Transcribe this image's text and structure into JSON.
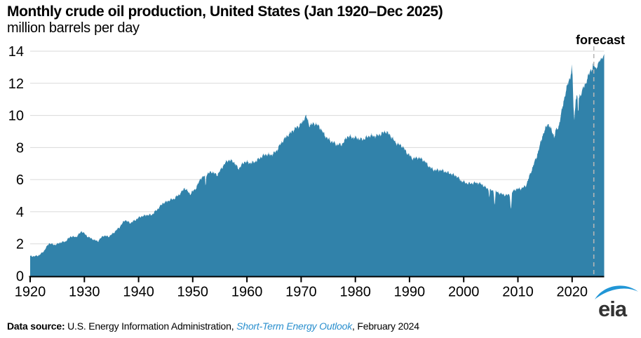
{
  "page": {
    "title": "Monthly crude oil production, United States (Jan 1920–Dec 2025)",
    "subtitle": "million barrels per day"
  },
  "chart_data": {
    "type": "area",
    "title": "Monthly crude oil production, United States (Jan 1920–Dec 2025)",
    "subtitle": "million barrels per day",
    "xlabel": "",
    "ylabel": "million barrels per day",
    "xlim_years": [
      1920,
      2025
    ],
    "ylim": [
      0,
      14
    ],
    "x_ticks": [
      1920,
      1930,
      1940,
      1950,
      1960,
      1970,
      1980,
      1990,
      2000,
      2010,
      2020
    ],
    "y_ticks": [
      0,
      2,
      4,
      6,
      8,
      10,
      12,
      14
    ],
    "grid": "horizontal",
    "legend": "none",
    "forecast_label": "forecast",
    "forecast_start": 2024.0,
    "series": [
      {
        "name": "U.S. crude oil production",
        "unit": "million barrels per day",
        "frequency": "monthly",
        "start_year": 1920,
        "annual_values": [
          1.21,
          1.29,
          1.53,
          2.01,
          1.95,
          2.09,
          2.11,
          2.47,
          2.46,
          2.76,
          2.46,
          2.33,
          2.15,
          2.48,
          2.48,
          2.73,
          3.0,
          3.5,
          3.33,
          3.47,
          3.7,
          3.84,
          3.8,
          4.12,
          4.58,
          4.69,
          4.75,
          5.09,
          5.52,
          5.05,
          5.41,
          6.16,
          6.26,
          6.46,
          6.34,
          6.81,
          7.15,
          7.17,
          6.71,
          7.05,
          7.04,
          7.18,
          7.33,
          7.54,
          7.61,
          7.8,
          8.3,
          8.81,
          9.1,
          9.24,
          9.64,
          9.46,
          9.44,
          9.21,
          8.77,
          8.37,
          8.13,
          8.25,
          8.71,
          8.55,
          8.6,
          8.57,
          8.65,
          8.69,
          8.88,
          8.97,
          8.68,
          8.35,
          8.14,
          7.61,
          7.36,
          7.42,
          7.17,
          6.85,
          6.66,
          6.56,
          6.47,
          6.45,
          6.25,
          5.88,
          5.82,
          5.8,
          5.75,
          5.68,
          5.45,
          5.25,
          5.15,
          5.1,
          5.05,
          5.35,
          5.48,
          5.65,
          6.5,
          7.49,
          8.76,
          9.44,
          8.84,
          9.36,
          10.96,
          12.25,
          11.28,
          11.25,
          11.91,
          12.93,
          13.1,
          13.55
        ],
        "monthly_extremes": [
          {
            "date": "May 1952",
            "x": 1952.37,
            "value": 5.4,
            "width": 0.13
          },
          {
            "date": "Nov 1970",
            "x": 1970.88,
            "value": 10.05,
            "width": 0.6
          },
          {
            "date": "Sep 2004",
            "x": 2004.72,
            "value": 4.85,
            "width": 0.12
          },
          {
            "date": "Sep 2005",
            "x": 2005.71,
            "value": 4.3,
            "width": 0.2
          },
          {
            "date": "Sep 2008",
            "x": 2008.71,
            "value": 4.0,
            "width": 0.22
          },
          {
            "date": "Sep 2016",
            "x": 2016.7,
            "value": 8.6,
            "width": 0.2
          },
          {
            "date": "Nov 2019",
            "x": 2019.92,
            "value": 13.0,
            "width": 0.35
          },
          {
            "date": "May 2020",
            "x": 2020.4,
            "value": 9.7,
            "width": 0.3
          },
          {
            "date": "Feb 2021",
            "x": 2021.12,
            "value": 10.0,
            "width": 0.15
          },
          {
            "date": "Dec 2023",
            "x": 2023.95,
            "value": 13.3,
            "width": 0.25
          },
          {
            "date": "Jun 2024",
            "x": 2024.45,
            "value": 12.95,
            "width": 0.3
          },
          {
            "date": "Dec 2025",
            "x": 2025.92,
            "value": 13.7,
            "width": 0.35
          }
        ]
      }
    ],
    "colors": {
      "area": "#3182aa",
      "gridline": "#d9d9d9",
      "axis": "#000000",
      "forecast_line": "#b5b5b5",
      "forecast_text": "#a6a6a6"
    }
  },
  "footer": {
    "label": "Data source:",
    "pre_link": " U.S. Energy Information Administration, ",
    "link_label": "Short-Term Energy Outlook",
    "suffix": ", February 2024"
  },
  "logo": {
    "text": "eia",
    "swoosh_color": "#2196d6"
  }
}
